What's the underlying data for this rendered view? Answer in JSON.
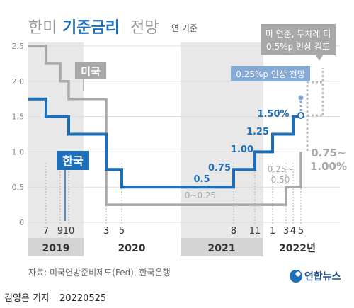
{
  "header": {
    "title_light_1": "한미",
    "title_bold": "기준금리",
    "title_light_2": "전망",
    "unit": "연 기준"
  },
  "chart_data": {
    "type": "line",
    "ylim": [
      0,
      2.5
    ],
    "yticks": [
      "0",
      "0.5",
      "1.0",
      "1.5",
      "2.0",
      "2.5"
    ],
    "x_tick_labels": [
      "7",
      "9",
      "10",
      "3",
      "5",
      "8",
      "11",
      "1",
      "3",
      "4",
      "5"
    ],
    "years": [
      "2019",
      "2020",
      "2021",
      "2022년"
    ],
    "series": [
      {
        "name": "미국",
        "color": "#a8a8a8",
        "steps": [
          {
            "from": "2019-01",
            "to": "2019-07",
            "value": 2.5
          },
          {
            "from": "2019-07",
            "to": "2019-09",
            "value": 2.25
          },
          {
            "from": "2019-09",
            "to": "2019-10",
            "value": 2.0
          },
          {
            "from": "2019-10",
            "to": "2020-03",
            "value": 1.75
          },
          {
            "from": "2020-03",
            "to": "2020-03",
            "value": 1.25
          },
          {
            "from": "2020-03",
            "to": "2022-03",
            "value": 0.25
          },
          {
            "from": "2022-03",
            "to": "2022-05",
            "value": 0.5
          },
          {
            "from": "2022-05",
            "to": "2022-05",
            "value": 1.0
          }
        ]
      },
      {
        "name": "한국",
        "color": "#1e6fba",
        "steps": [
          {
            "from": "2019-01",
            "to": "2019-07",
            "value": 1.75
          },
          {
            "from": "2019-07",
            "to": "2019-10",
            "value": 1.5
          },
          {
            "from": "2019-10",
            "to": "2020-03",
            "value": 1.25
          },
          {
            "from": "2020-03",
            "to": "2020-05",
            "value": 0.75
          },
          {
            "from": "2020-05",
            "to": "2021-08",
            "value": 0.5
          },
          {
            "from": "2021-08",
            "to": "2021-11",
            "value": 0.75
          },
          {
            "from": "2021-11",
            "to": "2022-01",
            "value": 1.0
          },
          {
            "from": "2022-01",
            "to": "2022-04",
            "value": 1.25
          },
          {
            "from": "2022-04",
            "to": "2022-05",
            "value": 1.5
          }
        ]
      }
    ],
    "annotations": {
      "kr_05": "0.5",
      "kr_075": "0.75",
      "kr_100": "1.00",
      "kr_125": "1.25",
      "kr_150": "1.50%",
      "us_range_low": "0~0.25",
      "us_range_mid_1": "0.25~",
      "us_range_mid_2": "0.50",
      "us_range_high_1": "0.75~",
      "us_range_high_2": "1.00%",
      "kr_forecast": "0.25%p 인상 전망",
      "us_forecast_1": "미 연준, 두차례 더",
      "us_forecast_2": "0.5%p 인상 검토"
    }
  },
  "footer": {
    "source": "자료: 미국연방준비제도(Fed), 한국은행",
    "logo_text": "연합뉴스",
    "credit": "김영은 기자",
    "date": "20220525"
  },
  "colors": {
    "us_gray": "#a8a8a8",
    "kr_blue": "#1e6fba",
    "forecast_box": "#86a9d6",
    "band": "#e6e6e6",
    "axis_text": "#8a8a8a"
  }
}
